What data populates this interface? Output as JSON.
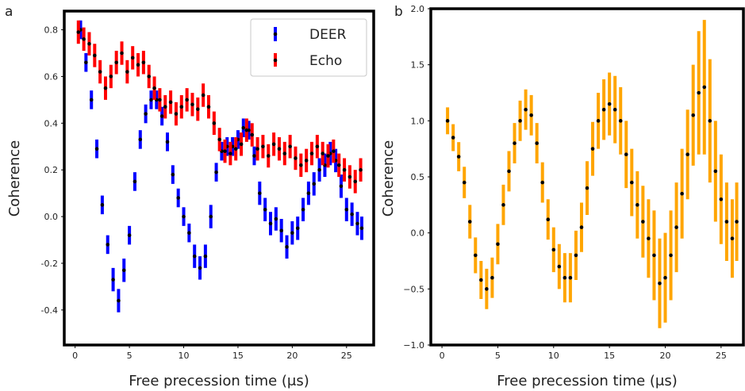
{
  "chart_data": [
    {
      "type": "scatter",
      "panel_label": "a",
      "xlabel": "Free precession time (μs)",
      "ylabel": "Coherence",
      "xlim": [
        -1,
        27.5
      ],
      "ylim": [
        -0.55,
        0.88
      ],
      "xticks": [
        0,
        5,
        10,
        15,
        20,
        25
      ],
      "xtick_labels": [
        "0",
        "5",
        "10",
        "15",
        "20",
        "25"
      ],
      "yticks": [
        -0.4,
        -0.2,
        0.0,
        0.2,
        0.4,
        0.6,
        0.8
      ],
      "ytick_labels": [
        "-0.4",
        "-0.2",
        "0.0",
        "0.2",
        "0.4",
        "0.6",
        "0.8"
      ],
      "grid": false,
      "legend_position": "upper right",
      "series": [
        {
          "name": "DEER",
          "color": "#0000ff",
          "marker_color": "#000000",
          "x": [
            0.5,
            1.0,
            1.5,
            2.0,
            2.5,
            3.0,
            3.5,
            4.0,
            4.5,
            5.0,
            5.5,
            6.0,
            6.5,
            7.0,
            7.5,
            8.0,
            8.5,
            9.0,
            9.5,
            10.0,
            10.5,
            11.0,
            11.5,
            12.0,
            12.5,
            13.0,
            13.5,
            14.0,
            14.5,
            15.0,
            15.5,
            16.0,
            16.5,
            17.0,
            17.5,
            18.0,
            18.5,
            19.0,
            19.5,
            20.0,
            20.5,
            21.0,
            21.5,
            22.0,
            22.5,
            23.0,
            23.5,
            24.0,
            24.5,
            25.0,
            25.5,
            26.0,
            26.4
          ],
          "y": [
            0.8,
            0.66,
            0.5,
            0.29,
            0.05,
            -0.12,
            -0.27,
            -0.36,
            -0.23,
            -0.08,
            0.15,
            0.33,
            0.44,
            0.5,
            0.5,
            0.43,
            0.32,
            0.18,
            0.08,
            0.0,
            -0.07,
            -0.17,
            -0.22,
            -0.17,
            0.0,
            0.19,
            0.28,
            0.3,
            0.3,
            0.33,
            0.38,
            0.37,
            0.26,
            0.1,
            0.03,
            -0.03,
            -0.01,
            -0.06,
            -0.13,
            -0.07,
            -0.05,
            0.03,
            0.1,
            0.14,
            0.2,
            0.22,
            0.27,
            0.24,
            0.13,
            0.03,
            0.01,
            -0.03,
            -0.05
          ],
          "err": [
            0.04,
            0.04,
            0.04,
            0.04,
            0.04,
            0.04,
            0.05,
            0.05,
            0.05,
            0.04,
            0.04,
            0.04,
            0.04,
            0.04,
            0.04,
            0.04,
            0.04,
            0.04,
            0.04,
            0.04,
            0.04,
            0.05,
            0.05,
            0.05,
            0.05,
            0.04,
            0.04,
            0.04,
            0.04,
            0.04,
            0.04,
            0.04,
            0.04,
            0.05,
            0.05,
            0.05,
            0.05,
            0.05,
            0.05,
            0.05,
            0.05,
            0.05,
            0.05,
            0.05,
            0.05,
            0.05,
            0.05,
            0.05,
            0.05,
            0.05,
            0.05,
            0.05,
            0.05
          ]
        },
        {
          "name": "Echo",
          "color": "#ff0000",
          "marker_color": "#000000",
          "x": [
            0.3,
            0.8,
            1.3,
            1.8,
            2.3,
            2.8,
            3.3,
            3.8,
            4.3,
            4.8,
            5.3,
            5.8,
            6.3,
            6.8,
            7.3,
            7.8,
            8.3,
            8.8,
            9.3,
            9.8,
            10.3,
            10.8,
            11.3,
            11.8,
            12.3,
            12.8,
            13.3,
            13.8,
            14.3,
            14.8,
            15.3,
            15.8,
            16.3,
            16.8,
            17.3,
            17.8,
            18.3,
            18.8,
            19.3,
            19.8,
            20.3,
            20.8,
            21.3,
            21.8,
            22.3,
            22.8,
            23.3,
            23.8,
            24.3,
            24.8,
            25.3,
            25.8,
            26.3
          ],
          "y": [
            0.79,
            0.76,
            0.74,
            0.69,
            0.62,
            0.55,
            0.6,
            0.66,
            0.7,
            0.62,
            0.68,
            0.65,
            0.66,
            0.6,
            0.55,
            0.5,
            0.47,
            0.49,
            0.44,
            0.47,
            0.5,
            0.48,
            0.46,
            0.52,
            0.47,
            0.4,
            0.33,
            0.28,
            0.27,
            0.29,
            0.31,
            0.37,
            0.35,
            0.29,
            0.3,
            0.26,
            0.31,
            0.29,
            0.27,
            0.3,
            0.25,
            0.22,
            0.24,
            0.27,
            0.3,
            0.27,
            0.26,
            0.28,
            0.22,
            0.2,
            0.17,
            0.15,
            0.2
          ],
          "err": [
            0.05,
            0.05,
            0.05,
            0.05,
            0.05,
            0.05,
            0.05,
            0.05,
            0.05,
            0.05,
            0.05,
            0.05,
            0.05,
            0.05,
            0.05,
            0.05,
            0.05,
            0.05,
            0.05,
            0.05,
            0.05,
            0.05,
            0.05,
            0.05,
            0.05,
            0.05,
            0.05,
            0.05,
            0.05,
            0.05,
            0.05,
            0.05,
            0.05,
            0.05,
            0.05,
            0.05,
            0.05,
            0.05,
            0.05,
            0.05,
            0.05,
            0.05,
            0.05,
            0.05,
            0.05,
            0.05,
            0.05,
            0.05,
            0.05,
            0.05,
            0.05,
            0.05,
            0.05
          ]
        }
      ]
    },
    {
      "type": "scatter",
      "panel_label": "b",
      "xlabel": "Free precession time (μs)",
      "ylabel": "Coherence",
      "xlim": [
        -1,
        27
      ],
      "ylim": [
        -1.0,
        2.0
      ],
      "xticks": [
        0,
        5,
        10,
        15,
        20,
        25
      ],
      "xtick_labels": [
        "0",
        "5",
        "10",
        "15",
        "20",
        "25"
      ],
      "yticks": [
        -1.0,
        -0.5,
        0.0,
        0.5,
        1.0,
        1.5,
        2.0
      ],
      "ytick_labels": [
        "−1.0",
        "−0.5",
        "0.0",
        "0.5",
        "1.0",
        "1.5",
        "2.0"
      ],
      "grid": false,
      "series": [
        {
          "color": "#ffa500",
          "marker_color": "#000000",
          "x": [
            0.5,
            1.0,
            1.5,
            2.0,
            2.5,
            3.0,
            3.5,
            4.0,
            4.5,
            5.0,
            5.5,
            6.0,
            6.5,
            7.0,
            7.5,
            8.0,
            8.5,
            9.0,
            9.5,
            10.0,
            10.5,
            11.0,
            11.5,
            12.0,
            12.5,
            13.0,
            13.5,
            14.0,
            14.5,
            15.0,
            15.5,
            16.0,
            16.5,
            17.0,
            17.5,
            18.0,
            18.5,
            19.0,
            19.5,
            20.0,
            20.5,
            21.0,
            21.5,
            22.0,
            22.5,
            23.0,
            23.5,
            24.0,
            24.5,
            25.0,
            25.5,
            26.0,
            26.4
          ],
          "y": [
            1.0,
            0.85,
            0.68,
            0.45,
            0.1,
            -0.2,
            -0.42,
            -0.5,
            -0.4,
            -0.1,
            0.25,
            0.55,
            0.8,
            1.0,
            1.1,
            1.05,
            0.8,
            0.45,
            0.12,
            -0.15,
            -0.3,
            -0.4,
            -0.4,
            -0.2,
            0.05,
            0.4,
            0.75,
            1.0,
            1.1,
            1.15,
            1.1,
            1.0,
            0.7,
            0.45,
            0.25,
            0.1,
            -0.05,
            -0.2,
            -0.45,
            -0.4,
            -0.2,
            0.05,
            0.35,
            0.7,
            1.05,
            1.25,
            1.3,
            1.0,
            0.55,
            0.3,
            0.1,
            -0.05,
            0.1
          ],
          "err": [
            0.12,
            0.12,
            0.13,
            0.14,
            0.15,
            0.16,
            0.17,
            0.18,
            0.18,
            0.18,
            0.18,
            0.18,
            0.18,
            0.18,
            0.18,
            0.18,
            0.18,
            0.18,
            0.18,
            0.2,
            0.2,
            0.22,
            0.22,
            0.22,
            0.22,
            0.24,
            0.24,
            0.25,
            0.27,
            0.28,
            0.3,
            0.3,
            0.3,
            0.3,
            0.3,
            0.32,
            0.35,
            0.4,
            0.4,
            0.4,
            0.4,
            0.4,
            0.4,
            0.4,
            0.45,
            0.55,
            0.6,
            0.55,
            0.45,
            0.4,
            0.35,
            0.35,
            0.35
          ]
        }
      ]
    }
  ]
}
